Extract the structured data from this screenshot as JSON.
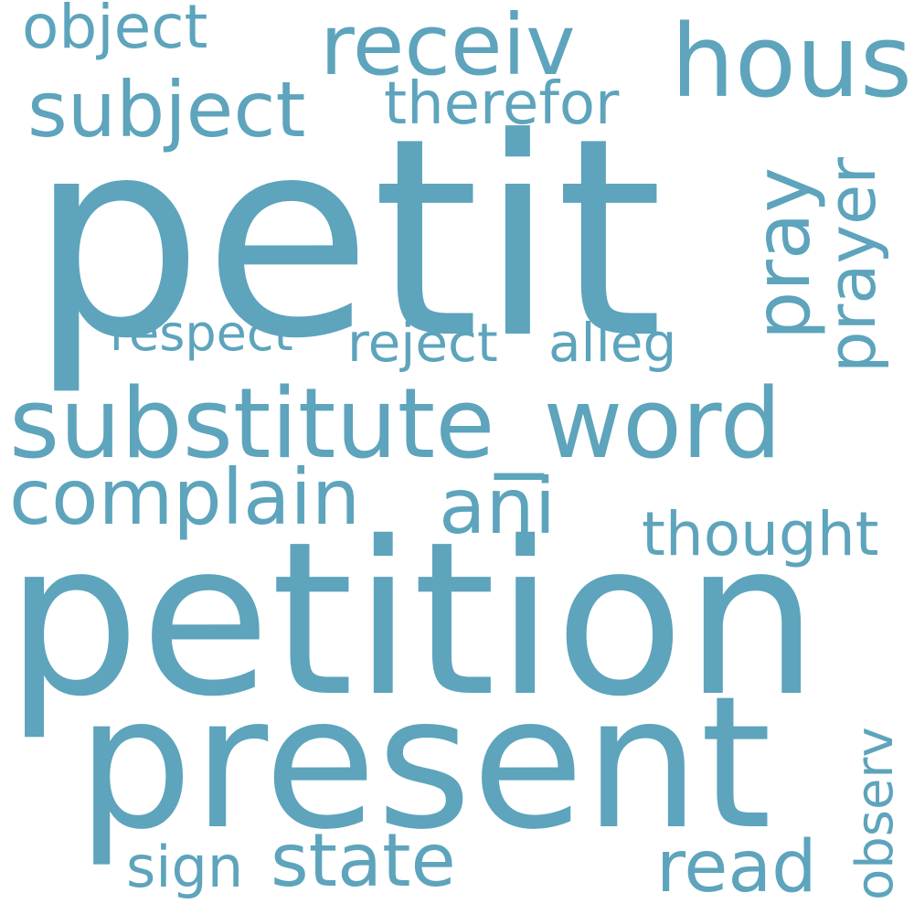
{
  "color": "#5da4bc",
  "words": [
    {
      "text": "petit",
      "orientation": "horizontal"
    },
    {
      "text": "petition",
      "orientation": "horizontal"
    },
    {
      "text": "present",
      "orientation": "horizontal"
    },
    {
      "text": "substitute_word",
      "orientation": "horizontal"
    },
    {
      "text": "hous",
      "orientation": "horizontal"
    },
    {
      "text": "receiv",
      "orientation": "horizontal"
    },
    {
      "text": "subject",
      "orientation": "horizontal"
    },
    {
      "text": "object",
      "orientation": "horizontal"
    },
    {
      "text": "therefor",
      "orientation": "horizontal"
    },
    {
      "text": "pray",
      "orientation": "vertical"
    },
    {
      "text": "prayer",
      "orientation": "vertical"
    },
    {
      "text": "respect",
      "orientation": "horizontal"
    },
    {
      "text": "reject",
      "orientation": "horizontal"
    },
    {
      "text": "alleg",
      "orientation": "horizontal"
    },
    {
      "text": "complain",
      "orientation": "horizontal"
    },
    {
      "text": "ani",
      "orientation": "horizontal"
    },
    {
      "text": "thought",
      "orientation": "horizontal"
    },
    {
      "text": "observ",
      "orientation": "vertical"
    },
    {
      "text": "read",
      "orientation": "horizontal"
    },
    {
      "text": "state",
      "orientation": "horizontal"
    },
    {
      "text": "sign",
      "orientation": "horizontal"
    }
  ]
}
